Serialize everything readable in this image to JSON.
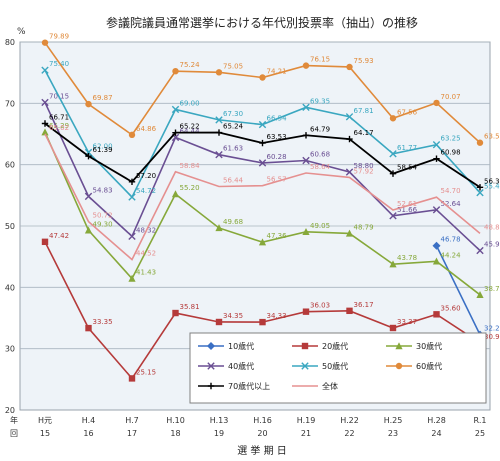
{
  "chart_data": {
    "type": "line",
    "title": "参議院議員通常選挙における年代別投票率（抽出）の推移",
    "y_unit": "%",
    "xlabel": "選 挙 期 日",
    "row_label_top": "年",
    "row_label_bottom": "回",
    "ylim": [
      20,
      80
    ],
    "yticks": [
      20,
      30,
      40,
      50,
      60,
      70,
      80
    ],
    "grid": true,
    "legend_position": "bottom-right",
    "categories": [
      "H元",
      "H.4",
      "H.7",
      "H.10",
      "H.13",
      "H.16",
      "H.19",
      "H.22",
      "H.25",
      "H.28",
      "R.1"
    ],
    "sessions": [
      "15",
      "16",
      "17",
      "18",
      "19",
      "20",
      "21",
      "22",
      "23",
      "24",
      "25"
    ],
    "series": [
      {
        "name": "10歳代",
        "color": "#3a6fc4",
        "marker": "diamond",
        "values": [
          null,
          null,
          null,
          null,
          null,
          null,
          null,
          null,
          null,
          46.78,
          32.28
        ]
      },
      {
        "name": "20歳代",
        "color": "#b53a3a",
        "marker": "square",
        "values": [
          47.42,
          33.35,
          25.15,
          35.81,
          34.35,
          34.33,
          36.03,
          36.17,
          33.37,
          35.6,
          30.96
        ]
      },
      {
        "name": "30歳代",
        "color": "#86a83a",
        "marker": "triangle",
        "values": [
          65.29,
          49.3,
          41.43,
          55.2,
          49.68,
          47.36,
          49.05,
          48.79,
          43.78,
          44.24,
          38.78
        ]
      },
      {
        "name": "40歳代",
        "color": "#6a4f93",
        "marker": "x",
        "values": [
          70.15,
          54.83,
          48.32,
          64.44,
          61.63,
          60.28,
          60.68,
          58.8,
          51.66,
          52.64,
          45.99
        ]
      },
      {
        "name": "50歳代",
        "color": "#3aa7c0",
        "marker": "x",
        "values": [
          75.4,
          62.0,
          54.72,
          69.0,
          67.3,
          66.54,
          69.35,
          67.81,
          61.77,
          63.25,
          55.43
        ]
      },
      {
        "name": "60歳代",
        "color": "#e08a3a",
        "marker": "circle",
        "values": [
          79.89,
          69.87,
          64.86,
          75.24,
          75.05,
          74.21,
          76.15,
          75.93,
          67.56,
          70.07,
          63.58
        ]
      },
      {
        "name": "70歳代以上",
        "color": "#000000",
        "marker": "plus",
        "values": [
          66.71,
          61.39,
          57.2,
          65.22,
          65.24,
          63.53,
          64.79,
          64.17,
          58.54,
          60.98,
          56.31
        ]
      },
      {
        "name": "全体",
        "color": "#e59090",
        "marker": "none",
        "values": [
          65.02,
          50.72,
          44.52,
          58.84,
          56.44,
          56.57,
          58.64,
          57.92,
          52.61,
          54.7,
          48.8
        ]
      }
    ]
  }
}
